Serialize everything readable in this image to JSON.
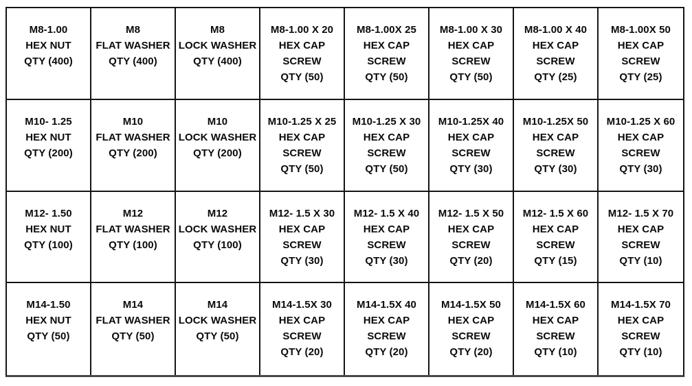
{
  "colors": {
    "background": "#ffffff",
    "grid_line": "#141414",
    "bottom_rule": "#474747",
    "text": "#0a0a0a"
  },
  "table": {
    "description": "metric hardware assortment bin label grid",
    "rows": [
      {
        "cells": [
          {
            "lines": [
              "M8-1.00",
              "HEX NUT",
              "QTY (400)"
            ]
          },
          {
            "lines": [
              "M8",
              "FLAT WASHER",
              "QTY (400)"
            ]
          },
          {
            "lines": [
              "M8",
              "LOCK WASHER",
              "QTY (400)"
            ]
          },
          {
            "lines": [
              "M8-1.00 X 20",
              "HEX CAP",
              "SCREW",
              "QTY (50)"
            ]
          },
          {
            "lines": [
              "M8-1.00X 25",
              "HEX CAP",
              "SCREW",
              "QTY (50)"
            ]
          },
          {
            "lines": [
              "M8-1.00 X 30",
              "HEX CAP",
              "SCREW",
              "QTY (50)"
            ]
          },
          {
            "lines": [
              "M8-1.00 X 40",
              "HEX CAP",
              "SCREW",
              "QTY (25)"
            ]
          },
          {
            "lines": [
              "M8-1.00X 50",
              "HEX CAP",
              "SCREW",
              "QTY (25)"
            ]
          }
        ]
      },
      {
        "cells": [
          {
            "lines": [
              "M10- 1.25",
              "HEX NUT",
              "QTY (200)"
            ]
          },
          {
            "lines": [
              "M10",
              "FLAT WASHER",
              "QTY (200)"
            ]
          },
          {
            "lines": [
              "M10",
              "LOCK WASHER",
              "QTY (200)"
            ]
          },
          {
            "lines": [
              "M10-1.25 X 25",
              "HEX CAP",
              "SCREW",
              "QTY (50)"
            ]
          },
          {
            "lines": [
              "M10-1.25 X 30",
              "HEX CAP",
              "SCREW",
              "QTY (50)"
            ]
          },
          {
            "lines": [
              "M10-1.25X 40",
              "HEX CAP",
              "SCREW",
              "QTY (30)"
            ]
          },
          {
            "lines": [
              "M10-1.25X 50",
              "HEX CAP",
              "SCREW",
              "QTY (30)"
            ]
          },
          {
            "lines": [
              "M10-1.25 X 60",
              "HEX CAP",
              "SCREW",
              "QTY (30)"
            ]
          }
        ]
      },
      {
        "cells": [
          {
            "lines": [
              "M12- 1.50",
              "HEX NUT",
              "QTY (100)"
            ]
          },
          {
            "lines": [
              "M12",
              "FLAT WASHER",
              "QTY (100)"
            ]
          },
          {
            "lines": [
              "M12",
              "LOCK WASHER",
              "QTY (100)"
            ]
          },
          {
            "lines": [
              "M12- 1.5 X 30",
              "HEX CAP",
              "SCREW",
              "QTY (30)"
            ]
          },
          {
            "lines": [
              "M12- 1.5 X 40",
              "HEX CAP",
              "SCREW",
              "QTY (30)"
            ]
          },
          {
            "lines": [
              "M12- 1.5 X 50",
              "HEX CAP",
              "SCREW",
              "QTY (20)"
            ]
          },
          {
            "lines": [
              "M12- 1.5 X 60",
              "HEX CAP",
              "SCREW",
              "QTY (15)"
            ]
          },
          {
            "lines": [
              "M12- 1.5 X 70",
              "HEX CAP",
              "SCREW",
              "QTY (10)"
            ]
          }
        ]
      },
      {
        "cells": [
          {
            "lines": [
              "M14-1.50",
              "HEX NUT",
              "QTY (50)"
            ]
          },
          {
            "lines": [
              "M14",
              "FLAT WASHER",
              "QTY (50)"
            ]
          },
          {
            "lines": [
              "M14",
              "LOCK WASHER",
              "QTY (50)"
            ]
          },
          {
            "lines": [
              "M14-1.5X 30",
              "HEX CAP",
              "SCREW",
              "QTY (20)"
            ]
          },
          {
            "lines": [
              "M14-1.5X 40",
              "HEX CAP",
              "SCREW",
              "QTY (20)"
            ]
          },
          {
            "lines": [
              "M14-1.5X 50",
              "HEX CAP",
              "SCREW",
              "QTY (20)"
            ]
          },
          {
            "lines": [
              "M14-1.5X 60",
              "HEX CAP",
              "SCREW",
              "QTY (10)"
            ]
          },
          {
            "lines": [
              "M14-1.5X 70",
              "HEX CAP",
              "SCREW",
              "QTY (10)"
            ]
          }
        ]
      }
    ]
  }
}
